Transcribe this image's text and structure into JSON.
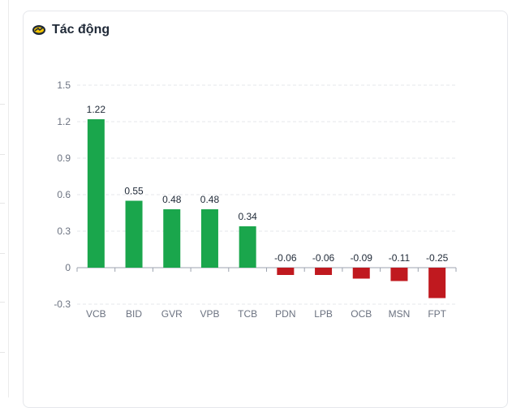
{
  "card": {
    "title": "Tác động",
    "icon": "impact-icon"
  },
  "colors": {
    "positive": "#1aa64c",
    "negative": "#c0191f",
    "grid": "#e5e7eb"
  },
  "chart_data": {
    "type": "bar",
    "title": "Tác động",
    "xlabel": "",
    "ylabel": "",
    "categories": [
      "VCB",
      "BID",
      "GVR",
      "VPB",
      "TCB",
      "PDN",
      "LPB",
      "OCB",
      "MSN",
      "FPT"
    ],
    "values": [
      1.22,
      0.55,
      0.48,
      0.48,
      0.34,
      -0.06,
      -0.06,
      -0.09,
      -0.11,
      -0.25
    ],
    "value_labels": [
      "1.22",
      "0.55",
      "0.48",
      "0.48",
      "0.34",
      "-0.06",
      "-0.06",
      "-0.09",
      "-0.11",
      "-0.25"
    ],
    "ylim": [
      -0.3,
      1.5
    ],
    "yticks": [
      1.5,
      1.2,
      0.9,
      0.6,
      0.3,
      0,
      -0.3
    ],
    "ytick_labels": [
      "1.5",
      "1.2",
      "0.9",
      "0.6",
      "0.3",
      "0",
      "-0.3"
    ],
    "grid": true,
    "legend": "none"
  }
}
